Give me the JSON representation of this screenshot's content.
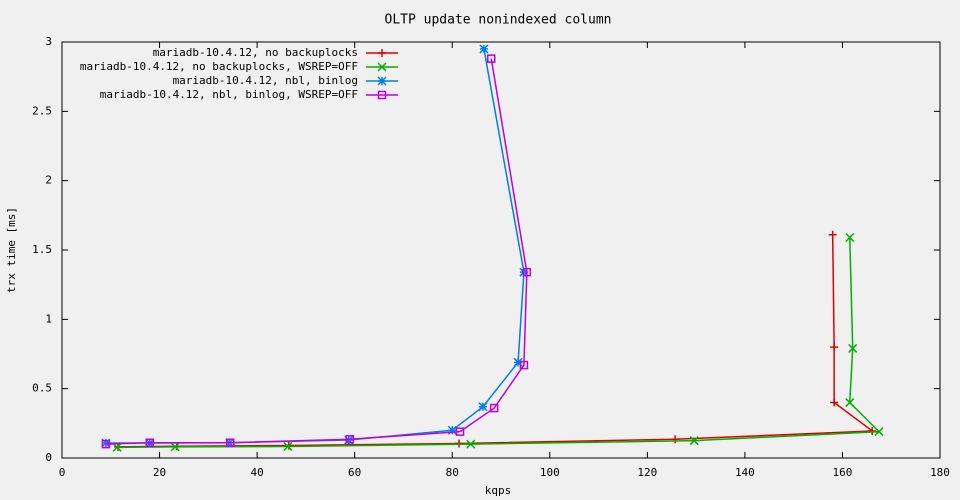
{
  "chart_data": {
    "type": "line",
    "title": "OLTP update nonindexed column",
    "x_label": "kqps",
    "y_label": "trx time [ms]",
    "xlim": [
      0,
      180
    ],
    "xticks": [
      0,
      20,
      40,
      60,
      80,
      100,
      120,
      140,
      160,
      180
    ],
    "ylim": [
      0,
      3
    ],
    "yticks": [
      0,
      0.5,
      1,
      1.5,
      2,
      2.5,
      3
    ],
    "grid": false,
    "legend": "top-left",
    "series": [
      {
        "name": "mariadb-10.4.12, no backuplocks",
        "color": "#e00000",
        "marker": "plus",
        "x": [
          11.5,
          23.5,
          46.5,
          81.4,
          125.7,
          166.1,
          158.3,
          158.3,
          158.0
        ],
        "values": [
          0.08,
          0.085,
          0.09,
          0.105,
          0.135,
          0.195,
          0.4,
          0.8,
          1.61
        ]
      },
      {
        "name": "mariadb-10.4.12, no backuplocks, WSREP=OFF",
        "color": "#00b000",
        "marker": "cross",
        "x": [
          11.3,
          23.2,
          46.3,
          83.8,
          129.6,
          167.5,
          161.5,
          162.1,
          161.5
        ],
        "values": [
          0.077,
          0.08,
          0.083,
          0.1,
          0.125,
          0.19,
          0.4,
          0.79,
          1.59
        ]
      },
      {
        "name": "mariadb-10.4.12, nbl, binlog",
        "color": "#0080e0",
        "marker": "star",
        "x": [
          9.0,
          18.0,
          34.4,
          58.8,
          80.0,
          86.3,
          93.5,
          94.7,
          86.5
        ],
        "values": [
          0.108,
          0.108,
          0.11,
          0.13,
          0.2,
          0.37,
          0.69,
          1.34,
          2.95
        ]
      },
      {
        "name": "mariadb-10.4.12, nbl, binlog, WSREP=OFF",
        "color": "#c000e0",
        "marker": "square",
        "x": [
          9.0,
          18.0,
          34.5,
          59.0,
          81.6,
          88.6,
          94.7,
          95.3,
          88.0
        ],
        "values": [
          0.1,
          0.11,
          0.11,
          0.135,
          0.19,
          0.36,
          0.67,
          1.34,
          2.88
        ]
      }
    ]
  }
}
